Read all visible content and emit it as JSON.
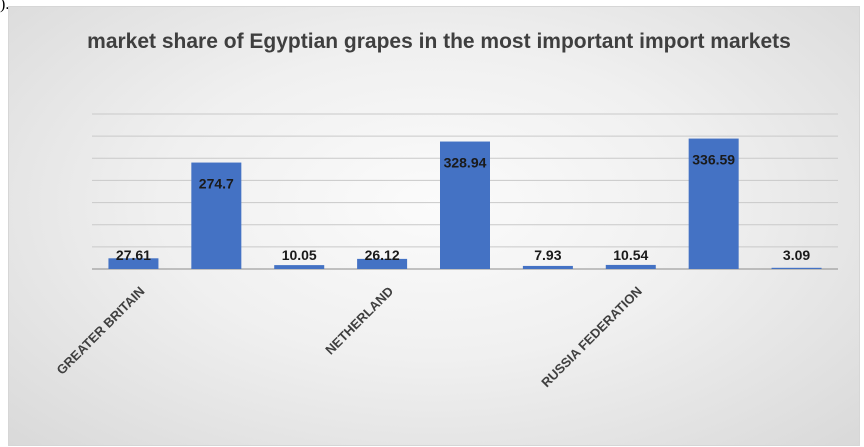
{
  "chart_data": {
    "type": "bar",
    "title": "market share of Egyptian grapes in the most important import markets",
    "categories": [
      "GREATER BRITAIN",
      "",
      "",
      "NETHERLAND",
      "",
      "",
      "RUSSIA FEDERATION",
      "",
      ""
    ],
    "values": [
      27.61,
      274.7,
      10.05,
      26.12,
      328.94,
      7.93,
      10.54,
      336.59,
      3.09
    ],
    "value_labels": [
      "27.61",
      "274.7",
      "10.05",
      "26.12",
      "328.94",
      "7.93",
      "10.54",
      "336.59",
      "3.09"
    ],
    "series_color": "#4472c4",
    "ylim": [
      0,
      400
    ],
    "grid": true,
    "legend": "none",
    "xlabel": "",
    "ylabel": ""
  },
  "corner_mark": ")."
}
